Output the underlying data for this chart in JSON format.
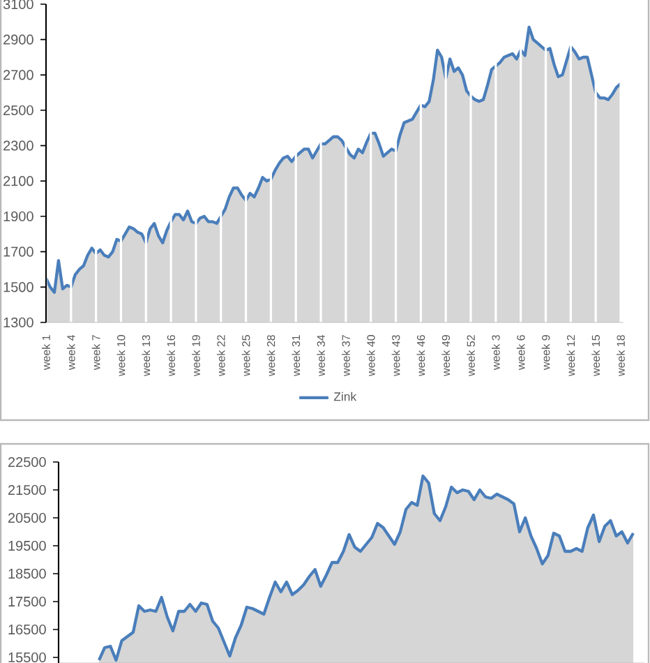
{
  "chart_data": [
    {
      "type": "area",
      "categories": [
        "week 1",
        null,
        null,
        null,
        null,
        null,
        "week 4",
        null,
        null,
        null,
        null,
        null,
        "week 7",
        null,
        null,
        null,
        null,
        null,
        "week 10",
        null,
        null,
        null,
        null,
        null,
        "week 13",
        null,
        null,
        null,
        null,
        null,
        "week 16",
        null,
        null,
        null,
        null,
        null,
        "week 19",
        null,
        null,
        null,
        null,
        null,
        "week 22",
        null,
        null,
        null,
        null,
        null,
        "week 25",
        null,
        null,
        null,
        null,
        null,
        "week 28",
        null,
        null,
        null,
        null,
        null,
        "week 31",
        null,
        null,
        null,
        null,
        null,
        "week 34",
        null,
        null,
        null,
        null,
        null,
        "week 37",
        null,
        null,
        null,
        null,
        null,
        "week 40",
        null,
        null,
        null,
        null,
        null,
        "week 43",
        null,
        null,
        null,
        null,
        null,
        "week 46",
        null,
        null,
        null,
        null,
        null,
        "week 49",
        null,
        null,
        null,
        null,
        null,
        "week 52",
        null,
        null,
        null,
        null,
        null,
        "week 3",
        null,
        null,
        null,
        null,
        null,
        "week 6",
        null,
        null,
        null,
        null,
        null,
        "week 9",
        null,
        null,
        null,
        null,
        null,
        "week 12",
        null,
        null,
        null,
        null,
        null,
        "week 15",
        null,
        null,
        null,
        null,
        null,
        "week 18"
      ],
      "series": [
        {
          "name": "Zink",
          "color": "#4a7ebb",
          "values": [
            1550,
            1500,
            1470,
            1650,
            1490,
            1510,
            1500,
            1570,
            1600,
            1620,
            1680,
            1720,
            1690,
            1710,
            1680,
            1670,
            1700,
            1770,
            1760,
            1800,
            1840,
            1830,
            1810,
            1800,
            1750,
            1830,
            1860,
            1790,
            1750,
            1820,
            1870,
            1910,
            1910,
            1880,
            1930,
            1870,
            1860,
            1890,
            1900,
            1870,
            1870,
            1860,
            1900,
            1940,
            2010,
            2060,
            2060,
            2020,
            1990,
            2030,
            2010,
            2060,
            2120,
            2100,
            2110,
            2160,
            2200,
            2230,
            2240,
            2210,
            2240,
            2260,
            2280,
            2280,
            2230,
            2270,
            2310,
            2310,
            2330,
            2350,
            2350,
            2330,
            2290,
            2250,
            2230,
            2280,
            2260,
            2320,
            2370,
            2370,
            2310,
            2240,
            2260,
            2280,
            2270,
            2360,
            2430,
            2440,
            2450,
            2490,
            2530,
            2520,
            2550,
            2670,
            2840,
            2800,
            2680,
            2790,
            2720,
            2740,
            2700,
            2610,
            2580,
            2560,
            2550,
            2560,
            2640,
            2730,
            2750,
            2770,
            2800,
            2810,
            2820,
            2790,
            2840,
            2810,
            2970,
            2900,
            2880,
            2860,
            2840,
            2850,
            2760,
            2690,
            2700,
            2780,
            2860,
            2830,
            2790,
            2800,
            2800,
            2700,
            2600,
            2570,
            2570,
            2560,
            2590,
            2630,
            2650
          ]
        }
      ],
      "ylim": [
        1300,
        3100
      ],
      "yticks": [
        1300,
        1500,
        1700,
        1900,
        2100,
        2300,
        2500,
        2700,
        2900,
        3100
      ],
      "grid": "x",
      "legend": "bottom"
    },
    {
      "type": "area",
      "categories": [
        null,
        null,
        null,
        null,
        null,
        null,
        null,
        null,
        null,
        null,
        null,
        null,
        null,
        null,
        null,
        null,
        null,
        null,
        null,
        null,
        null,
        null,
        null,
        null,
        null,
        null,
        null,
        null,
        null,
        null,
        null,
        null,
        null,
        null,
        null,
        null,
        null,
        null,
        null,
        null,
        null,
        null,
        null,
        null,
        null,
        null,
        null,
        null,
        null,
        null,
        null,
        null,
        null,
        null,
        null,
        null,
        null,
        null,
        null,
        null,
        null,
        null,
        null,
        null,
        null,
        null,
        null,
        null,
        null,
        null,
        null,
        null,
        null,
        null,
        null,
        null,
        null,
        null,
        null,
        null,
        null,
        null,
        null,
        null,
        null,
        null,
        null,
        null,
        null,
        null,
        null,
        null,
        null,
        null,
        null
      ],
      "series": [
        {
          "color": "#4a7ebb",
          "values": [
            15400,
            15850,
            15900,
            15400,
            16100,
            16250,
            16400,
            17350,
            17150,
            17200,
            17150,
            17650,
            16950,
            16450,
            17150,
            17150,
            17400,
            17150,
            17450,
            17400,
            16800,
            16550,
            16050,
            15550,
            16200,
            16650,
            17300,
            17250,
            17150,
            17050,
            17650,
            18200,
            17850,
            18200,
            17750,
            17900,
            18100,
            18400,
            18650,
            18050,
            18450,
            18900,
            18900,
            19300,
            19900,
            19450,
            19300,
            19550,
            19800,
            20300,
            20150,
            19850,
            19550,
            20000,
            20800,
            21050,
            20950,
            22000,
            21750,
            20650,
            20400,
            20900,
            21600,
            21400,
            21500,
            21450,
            21150,
            21500,
            21250,
            21200,
            21350,
            21250,
            21150,
            21000,
            20000,
            20500,
            19850,
            19400,
            18850,
            19150,
            19950,
            19850,
            19300,
            19300,
            19400,
            19300,
            20150,
            20600,
            19650,
            20200,
            20400,
            19850,
            20000,
            19600,
            19950
          ]
        }
      ],
      "ylim": [
        15300,
        22500
      ],
      "yticks": [
        15500,
        16500,
        17500,
        18500,
        19500,
        20500,
        21500,
        22500
      ],
      "tick_labels": "y"
    }
  ]
}
